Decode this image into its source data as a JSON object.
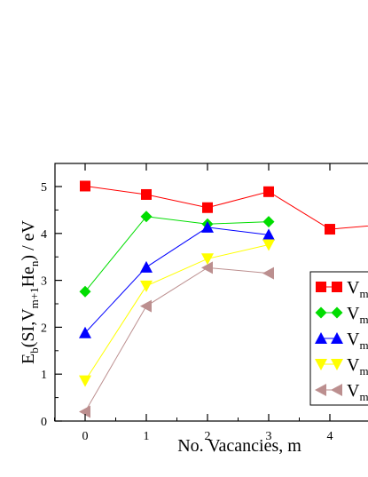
{
  "chart_data": {
    "type": "line",
    "xlabel": "No. Vacancies, m",
    "ylabel": {
      "E": "E",
      "sub_b": "b",
      "open": "(SI,V",
      "sub_m1": "m+1",
      "He": "He",
      "sub_n": "n",
      "close": ") / eV"
    },
    "xlim": [
      -0.5,
      4.6
    ],
    "ylim": [
      0,
      5.5
    ],
    "x_ticks": [
      "0",
      "1",
      "2",
      "3",
      "4"
    ],
    "y_ticks": [
      "0",
      "1",
      "2",
      "3",
      "4",
      "5"
    ],
    "grid": false,
    "legend_position": "right (partially cropped)",
    "series": [
      {
        "label_text": "V",
        "label_sub": "m",
        "color": "#ff0000",
        "marker": "square",
        "x": [
          0,
          1,
          2,
          3,
          4,
          5
        ],
        "y": [
          5.01,
          4.83,
          4.55,
          4.89,
          4.09,
          4.2
        ]
      },
      {
        "label_text": "V",
        "label_sub": "m",
        "color": "#00dd00",
        "marker": "diamond",
        "x": [
          0,
          1,
          2,
          3
        ],
        "y": [
          2.76,
          4.36,
          4.2,
          4.25
        ]
      },
      {
        "label_text": "V",
        "label_sub": "m",
        "color": "#0000ff",
        "marker": "triangle-up",
        "x": [
          0,
          1,
          2,
          3
        ],
        "y": [
          1.88,
          3.28,
          4.13,
          3.97
        ]
      },
      {
        "label_text": "V",
        "label_sub": "m",
        "color": "#ffff00",
        "marker": "triangle-down",
        "x": [
          0,
          1,
          2,
          3
        ],
        "y": [
          0.86,
          2.88,
          3.46,
          3.76
        ]
      },
      {
        "label_text": "V",
        "label_sub": "m",
        "color": "#bc8f8f",
        "marker": "triangle-left",
        "x": [
          0,
          1,
          2,
          3
        ],
        "y": [
          0.2,
          2.45,
          3.27,
          3.15
        ]
      }
    ]
  }
}
